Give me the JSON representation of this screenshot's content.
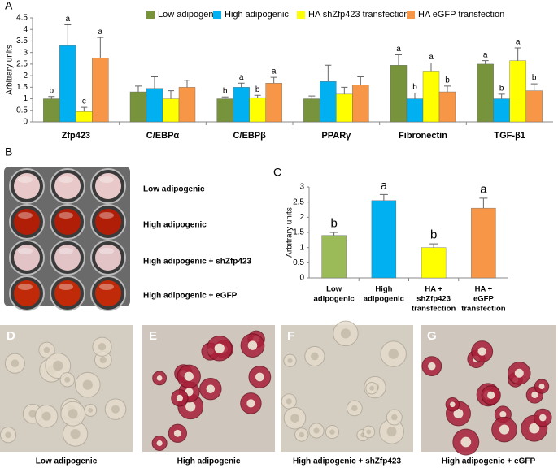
{
  "chart_data": [
    {
      "type": "bar",
      "y_label": "Arbitrary units",
      "categories": [
        "Zfp423",
        "C/EBPα",
        "C/EBPβ",
        "PPARγ",
        "Fibronectin",
        "TGF-β1"
      ],
      "series": [
        {
          "name": "Low adipogenic",
          "color": "#77933c",
          "values": [
            1.0,
            1.3,
            1.0,
            1.0,
            2.45,
            2.5
          ],
          "errors": [
            0.1,
            0.25,
            0.08,
            0.12,
            0.45,
            0.15
          ],
          "letters": [
            "b",
            null,
            "b",
            null,
            "a",
            "a"
          ]
        },
        {
          "name": "High adipogenic",
          "color": "#00b0f0",
          "values": [
            3.3,
            1.45,
            1.5,
            1.75,
            1.0,
            1.0
          ],
          "errors": [
            0.9,
            0.5,
            0.18,
            0.7,
            0.25,
            0.2
          ],
          "letters": [
            "a",
            null,
            "a",
            null,
            "b",
            "b"
          ]
        },
        {
          "name": "HA shZfp423 transfection",
          "color": "#ffff00",
          "values": [
            0.45,
            1.0,
            1.05,
            1.2,
            2.2,
            2.65
          ],
          "errors": [
            0.18,
            0.35,
            0.1,
            0.3,
            0.35,
            0.55
          ],
          "letters": [
            "c",
            null,
            "b",
            null,
            "a",
            "a"
          ]
        },
        {
          "name": "HA eGFP transfection",
          "color": "#f79646",
          "values": [
            2.75,
            1.5,
            1.68,
            1.6,
            1.3,
            1.35
          ],
          "errors": [
            0.9,
            0.3,
            0.25,
            0.35,
            0.25,
            0.3
          ],
          "letters": [
            "a",
            null,
            "a",
            null,
            "b",
            "b"
          ]
        }
      ],
      "ylim": [
        0,
        4.5
      ],
      "yticks": [
        0,
        0.5,
        1,
        1.5,
        2,
        2.5,
        3,
        3.5,
        4,
        4.5
      ],
      "legend": "top"
    },
    {
      "type": "bar",
      "y_label": "Arbitrary units",
      "categories": [
        [
          "Low",
          "adipogenic"
        ],
        [
          "High",
          "adipogenic"
        ],
        [
          "HA +",
          "shZfp423",
          "transfection"
        ],
        [
          "HA +",
          "eGFP",
          "transfection"
        ]
      ],
      "values": [
        1.4,
        2.55,
        1.0,
        2.3
      ],
      "errors": [
        0.1,
        0.2,
        0.12,
        0.33
      ],
      "letters": [
        "b",
        "a",
        "b",
        "a"
      ],
      "colors": [
        "#9bbb59",
        "#00b0f0",
        "#ffff00",
        "#f79646"
      ],
      "ylim": [
        0,
        3
      ],
      "yticks": [
        0,
        0.5,
        1,
        1.5,
        2,
        2.5,
        3
      ]
    }
  ],
  "panel_labels": [
    "A",
    "B",
    "C"
  ],
  "plate": {
    "rows": [
      "Low adipogenic",
      "High adipogenic",
      "High adipogenic + shZfp423",
      "High adipogenic + eGFP"
    ]
  },
  "micrographs": [
    {
      "letter": "D",
      "caption": "Low adipogenic"
    },
    {
      "letter": "E",
      "caption": "High adipogenic"
    },
    {
      "letter": "F",
      "caption": "High adipogenic + shZfp423"
    },
    {
      "letter": "G",
      "caption": "High adipogenic + eGFP"
    }
  ]
}
